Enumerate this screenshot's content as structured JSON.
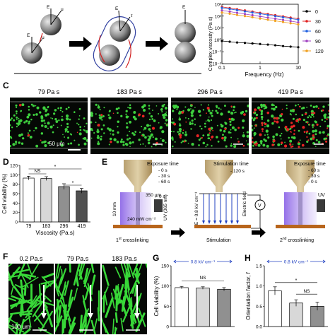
{
  "panelA": {
    "e_label": "E",
    "mu_label": "μ",
    "tau_label": "τ"
  },
  "panelB": {
    "chart_data": {
      "type": "line",
      "ylabel": "Complex viscosity (Pa s)",
      "xlabel": "Frequency (Hz)",
      "xscale": "log",
      "yscale": "log",
      "xlim": [
        0.1,
        10
      ],
      "ylim": [
        0.01,
        1000
      ],
      "x_ticks": [
        "0.1",
        "1",
        "10"
      ],
      "y_ticks": [
        "10⁻²",
        "10⁻¹",
        "10⁰",
        "10¹",
        "10²",
        "10³"
      ],
      "legend": "right",
      "x": [
        0.1,
        0.16,
        0.25,
        0.4,
        0.63,
        1,
        1.6,
        2.5,
        4,
        6.3,
        10
      ],
      "series": [
        {
          "name": "0",
          "color": "#000000",
          "values": [
            0.8,
            0.7,
            0.6,
            0.55,
            0.5,
            0.45,
            0.4,
            0.35,
            0.3,
            0.27,
            0.24
          ]
        },
        {
          "name": "30",
          "color": "#e02020",
          "values": [
            600,
            480,
            380,
            300,
            240,
            190,
            150,
            120,
            95,
            75,
            60
          ]
        },
        {
          "name": "60",
          "color": "#2060e0",
          "values": [
            500,
            400,
            320,
            250,
            200,
            160,
            125,
            100,
            80,
            62,
            50
          ]
        },
        {
          "name": "90",
          "color": "#a040c0",
          "values": [
            300,
            240,
            190,
            150,
            120,
            95,
            75,
            60,
            48,
            38,
            30
          ]
        },
        {
          "name": "120",
          "color": "#f0a020",
          "values": [
            200,
            160,
            125,
            100,
            80,
            62,
            50,
            40,
            32,
            25,
            20
          ]
        }
      ]
    }
  },
  "panelC": {
    "labels": [
      "79 Pa s",
      "183 Pa s",
      "296 Pa s",
      "419 Pa s"
    ],
    "scalebar": "50 μm"
  },
  "panelD": {
    "chart_data": {
      "type": "bar",
      "categories": [
        "79",
        "183",
        "296",
        "419"
      ],
      "values": [
        93,
        92,
        75,
        66
      ],
      "errors": [
        4,
        4,
        6,
        5
      ],
      "colors": [
        "#ffffff",
        "#d8d8d8",
        "#909090",
        "#505050"
      ],
      "ylabel": "Cell viability (%)",
      "xlabel": "Viscosity (Pa.s)",
      "ylim": [
        0,
        120
      ],
      "y_ticks": [
        "0",
        "20",
        "40",
        "60",
        "80",
        "100",
        "120"
      ],
      "annotations": [
        "NS",
        "*",
        "*"
      ]
    }
  },
  "panelE": {
    "stage1": {
      "title": "Exposure time",
      "times": [
        "- 0 s",
        "- 30 s",
        "- 60 s"
      ],
      "gap": "350 μm",
      "height": "10 mm",
      "uv": "UV (365 nm)",
      "power": "240 mW cm⁻²",
      "caption_num": "1",
      "caption_sup": "st",
      "caption": " crosslinking"
    },
    "stage2": {
      "title": "Stimulation time",
      "times": [
        "- 120 s"
      ],
      "field": "Electric field",
      "voltage": "V",
      "evalue": "E = 0.8 kV cm⁻¹",
      "caption": "Stimulation"
    },
    "stage3": {
      "title": "Exposure time",
      "times": [
        "- 60 s",
        "- 30 s",
        "- 0 s"
      ],
      "uv": "UV",
      "caption_num": "2",
      "caption_sup": "nd",
      "caption": " crosslinking"
    }
  },
  "panelF": {
    "labels": [
      "0.2 Pa.s",
      "79 Pa.s",
      "183 Pa.s"
    ],
    "scalebar": "100 μm"
  },
  "panelG": {
    "chart_data": {
      "type": "bar",
      "categories": [
        "",
        "",
        ""
      ],
      "values": [
        96,
        95,
        92
      ],
      "errors": [
        3,
        3,
        4
      ],
      "colors": [
        "#ffffff",
        "#d8d8d8",
        "#909090"
      ],
      "ylabel": "Cell viability (%)",
      "ylim": [
        0,
        150
      ],
      "y_ticks": [
        "0",
        "50",
        "100",
        "150"
      ],
      "header": "0.8 kV cm⁻¹",
      "annotations": [
        "NS"
      ]
    }
  },
  "panelH": {
    "chart_data": {
      "type": "bar",
      "categories": [
        "",
        "",
        ""
      ],
      "values": [
        0.88,
        0.58,
        0.5
      ],
      "errors": [
        0.1,
        0.08,
        0.1
      ],
      "colors": [
        "#ffffff",
        "#d8d8d8",
        "#909090"
      ],
      "ylabel": "Orientation factor, f",
      "ylim": [
        0,
        1.5
      ],
      "y_ticks": [
        "0.0",
        "0.5",
        "1.0",
        "1.5"
      ],
      "header": "0.8 kV cm⁻¹",
      "annotations": [
        "*",
        "NS"
      ]
    }
  },
  "letters": {
    "C": "C",
    "D": "D",
    "E": "E",
    "F": "F",
    "G": "G",
    "H": "H"
  }
}
